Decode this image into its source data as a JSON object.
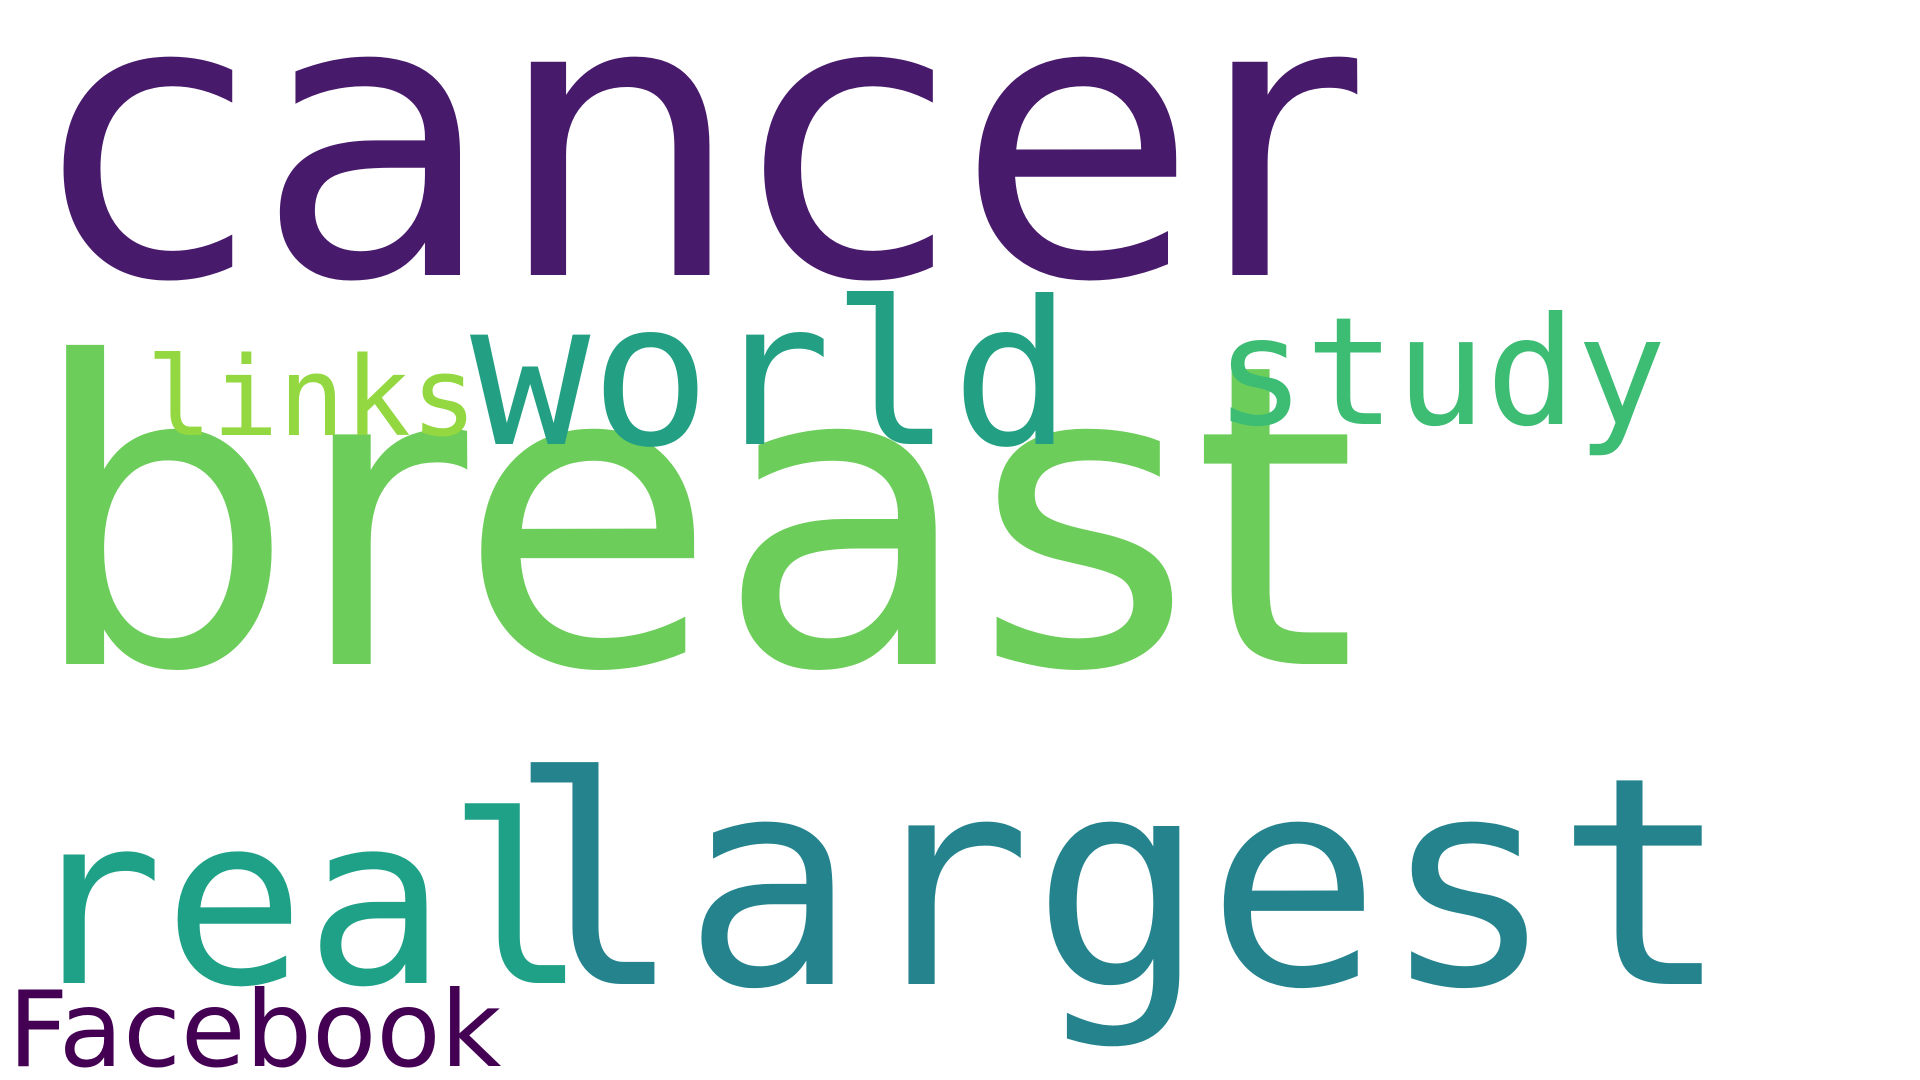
{
  "word_cloud": {
    "words": [
      {
        "text": "cancer",
        "color": "#481a6c"
      },
      {
        "text": "breast",
        "color": "#6ccd5a"
      },
      {
        "text": "largest",
        "color": "#25838e"
      },
      {
        "text": "real",
        "color": "#1fa187"
      },
      {
        "text": "world",
        "color": "#23a083"
      },
      {
        "text": "study",
        "color": "#3dbc74"
      },
      {
        "text": "links",
        "color": "#93d741"
      },
      {
        "text": "Facebook",
        "color": "#440154"
      }
    ]
  }
}
